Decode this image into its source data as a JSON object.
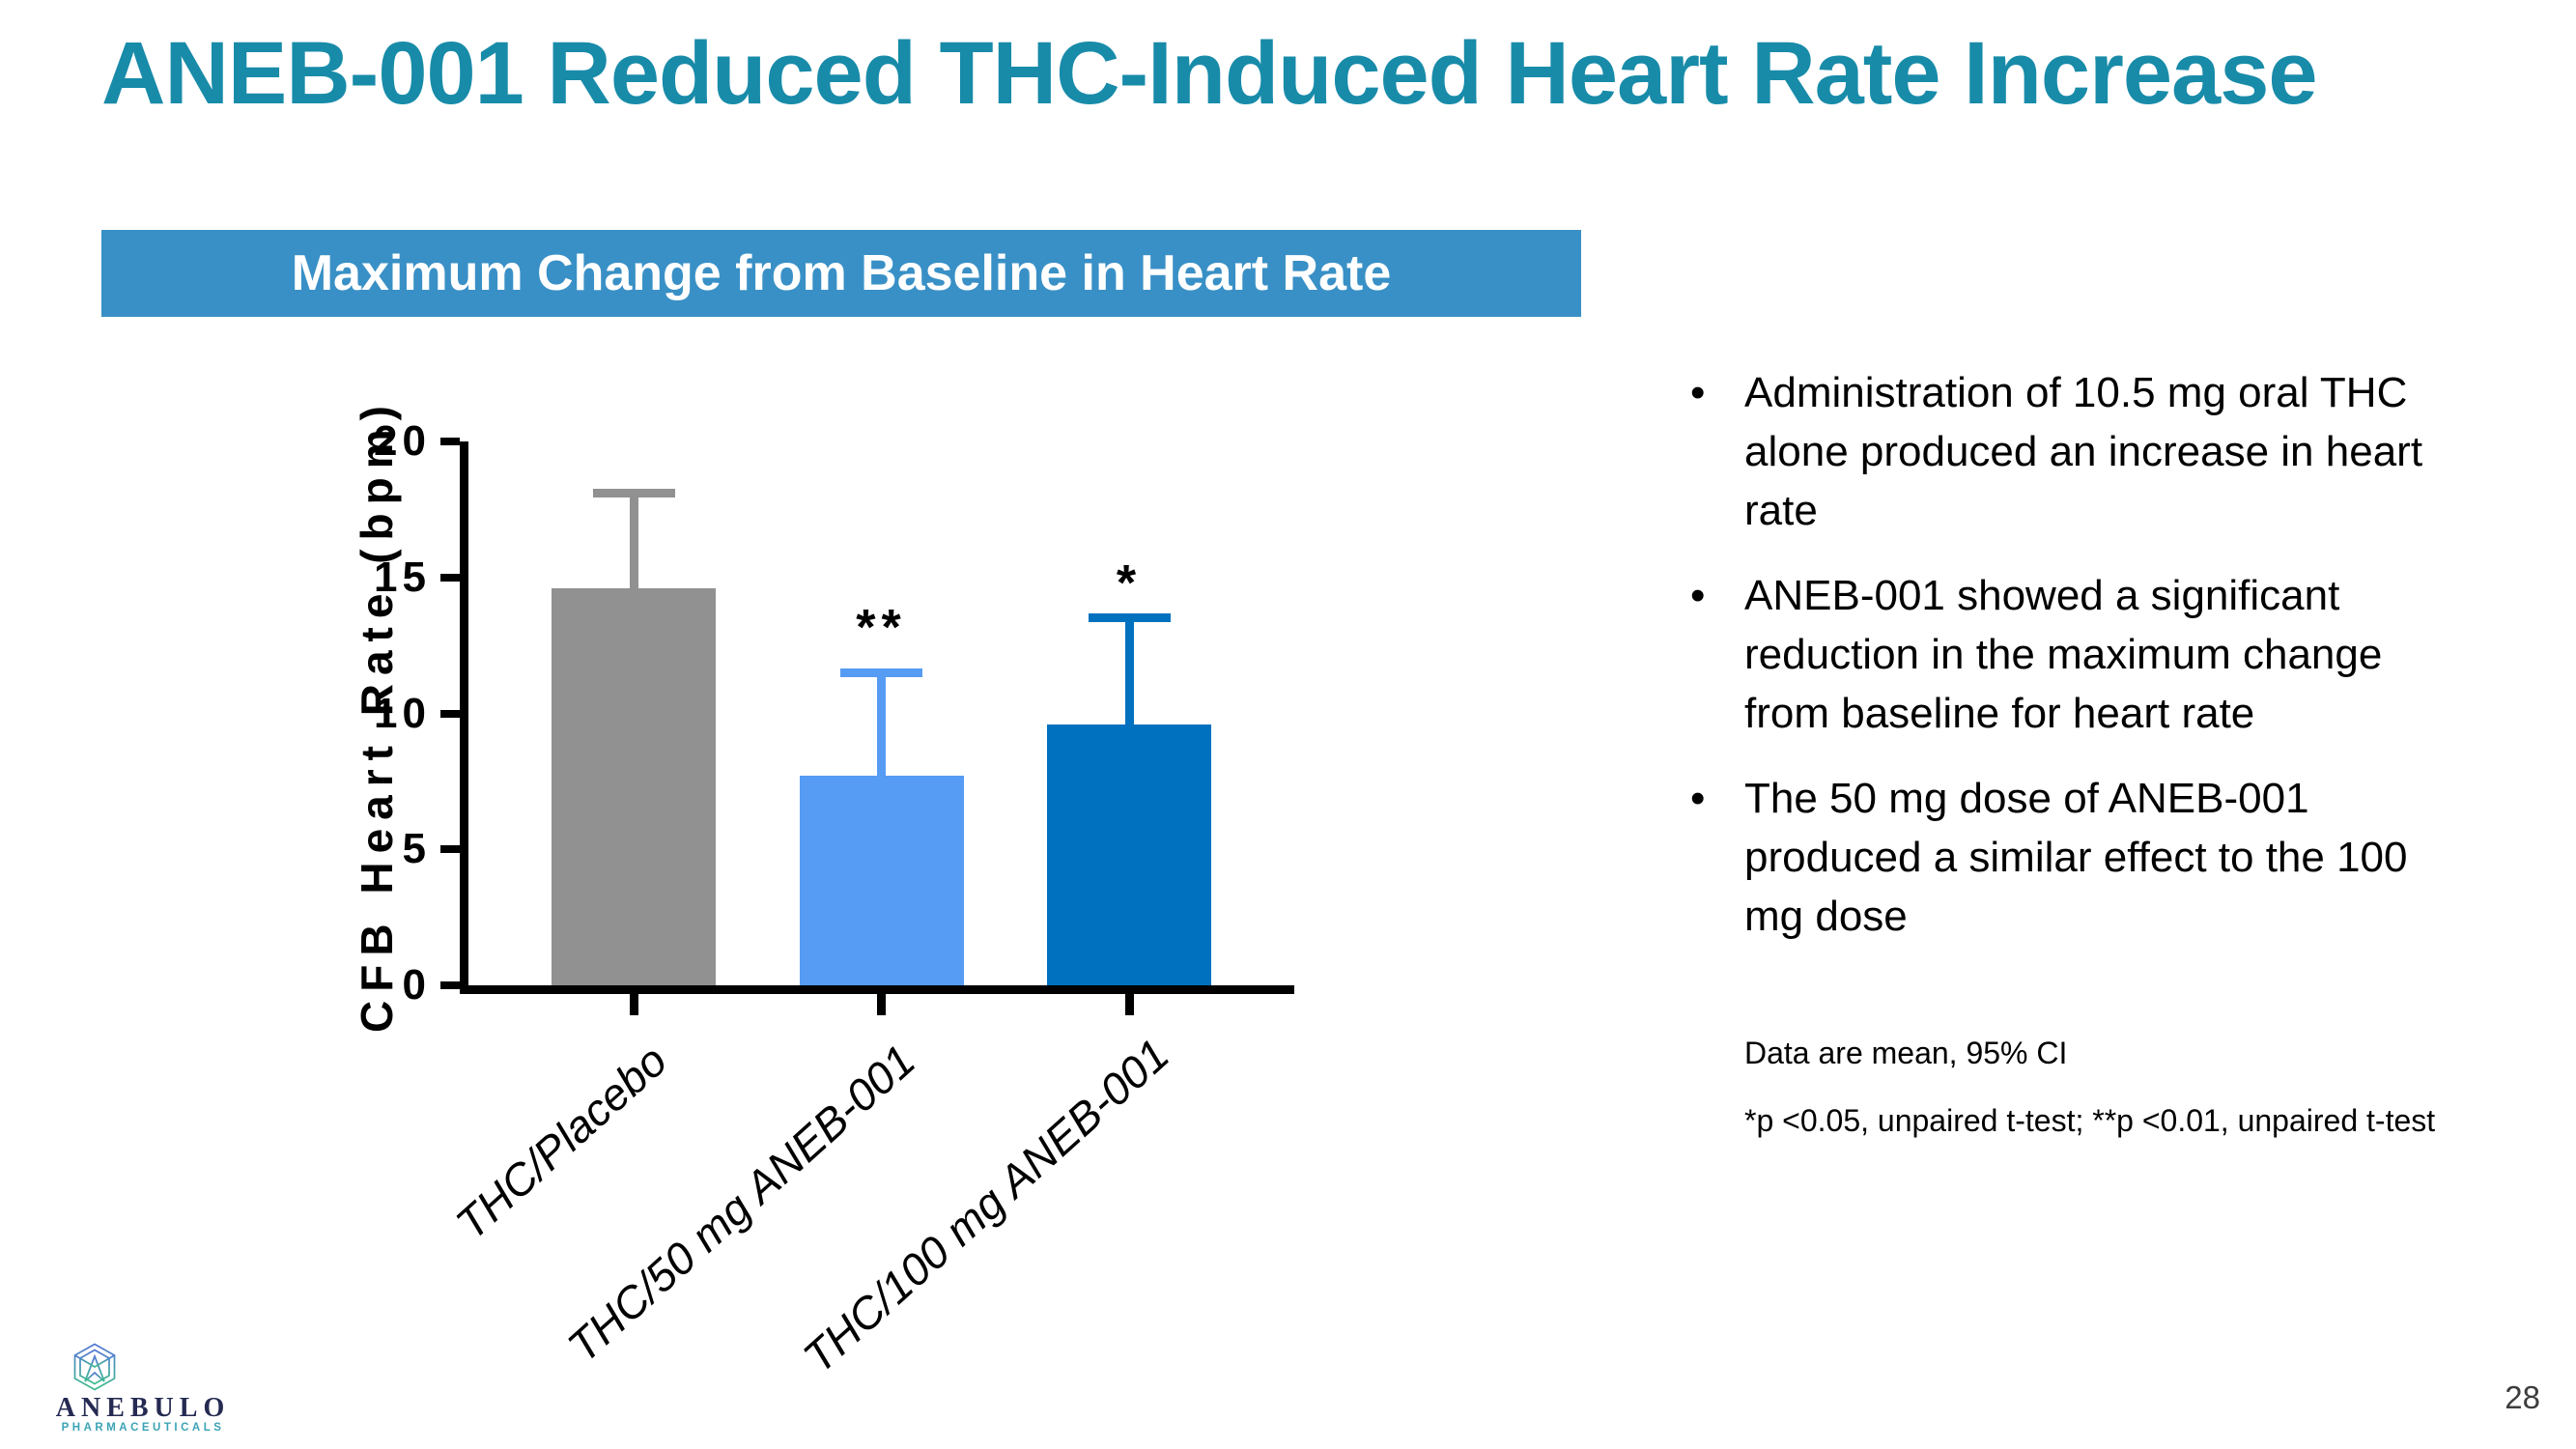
{
  "slide": {
    "title": "ANEB-001 Reduced THC-Induced Heart Rate Increase",
    "banner": "Maximum Change from Baseline in Heart Rate",
    "page_number": "28"
  },
  "bullets": [
    "Administration of 10.5 mg oral THC alone produced an increase in heart rate",
    "ANEB-001 showed a significant reduction in the maximum change from baseline for heart rate",
    "The 50 mg dose of ANEB-001 produced a similar effect to the 100 mg dose"
  ],
  "bullet_glyph": "•",
  "footnotes": [
    "Data are mean, 95% CI",
    "*p <0.05, unpaired t-test; **p <0.01, unpaired t-test"
  ],
  "logo": {
    "icon": "anebulo-hexagon-logo",
    "name": "ANEBULO",
    "subtitle": "PHARMACEUTICALS"
  },
  "colors": {
    "title_teal": "#188BA9",
    "banner_blue": "#3990C6",
    "bar_gray": "#919191",
    "bar_light_blue": "#569CF4",
    "bar_dark_blue": "#0071BF",
    "axis_black": "#000000",
    "logo_navy": "#252A52",
    "logo_teal": "#3BA3B5"
  },
  "chart_data": {
    "type": "bar",
    "title": "Maximum Change from Baseline in Heart Rate",
    "xlabel": "",
    "ylabel": "CFB Heart Rate (bpm)",
    "ylim": [
      0,
      20
    ],
    "yticks": [
      0,
      5,
      10,
      15,
      20
    ],
    "grid": false,
    "legend": "none",
    "categories": [
      "THC/Placebo",
      "THC/50 mg ANEB-001",
      "THC/100 mg ANEB-001"
    ],
    "values": [
      14.6,
      7.7,
      9.6
    ],
    "upper_ci": [
      18.1,
      11.5,
      13.5
    ],
    "error_bars": "upper only, mean with 95% CI",
    "bar_colors": [
      "#919191",
      "#569CF4",
      "#0071BF"
    ],
    "significance": [
      "",
      "**",
      "*"
    ]
  }
}
